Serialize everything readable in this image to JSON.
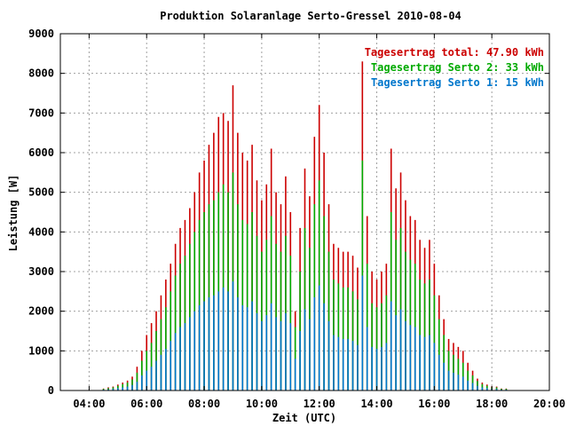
{
  "chart_data": {
    "type": "bar",
    "title": "Produktion Solaranlage Serto-Gressel 2010-08-04",
    "xlabel": "Zeit (UTC)",
    "ylabel": "Leistung [W]",
    "xlim_hours": [
      3.0,
      20.0
    ],
    "ylim": [
      0,
      9000
    ],
    "grid": true,
    "legend_placement": "top-right",
    "x_ticks": [
      "04:00",
      "06:00",
      "08:00",
      "10:00",
      "12:00",
      "14:00",
      "16:00",
      "18:00",
      "20:00"
    ],
    "x_tick_hours": [
      4,
      6,
      8,
      10,
      12,
      14,
      16,
      18,
      20
    ],
    "y_ticks": [
      "0",
      "1000",
      "2000",
      "3000",
      "4000",
      "5000",
      "6000",
      "7000",
      "8000",
      "9000"
    ],
    "y_tick_values": [
      0,
      1000,
      2000,
      3000,
      4000,
      5000,
      6000,
      7000,
      8000,
      9000
    ],
    "series": [
      {
        "name": "Tagesertrag total: 47.90 kWh",
        "color": "#cc0000",
        "times": [
          "04:30",
          "04:40",
          "04:50",
          "05:00",
          "05:10",
          "05:20",
          "05:30",
          "05:40",
          "05:50",
          "06:00",
          "06:10",
          "06:20",
          "06:30",
          "06:40",
          "06:50",
          "07:00",
          "07:10",
          "07:20",
          "07:30",
          "07:40",
          "07:50",
          "08:00",
          "08:10",
          "08:20",
          "08:30",
          "08:40",
          "08:50",
          "09:00",
          "09:10",
          "09:20",
          "09:30",
          "09:40",
          "09:50",
          "10:00",
          "10:10",
          "10:20",
          "10:30",
          "10:40",
          "10:50",
          "11:00",
          "11:10",
          "11:20",
          "11:30",
          "11:40",
          "11:50",
          "12:00",
          "12:10",
          "12:20",
          "12:30",
          "12:40",
          "12:50",
          "13:00",
          "13:10",
          "13:20",
          "13:30",
          "13:40",
          "13:50",
          "14:00",
          "14:10",
          "14:20",
          "14:30",
          "14:40",
          "14:50",
          "15:00",
          "15:10",
          "15:20",
          "15:30",
          "15:40",
          "15:50",
          "16:00",
          "16:10",
          "16:20",
          "16:30",
          "16:40",
          "16:50",
          "17:00",
          "17:10",
          "17:20",
          "17:30",
          "17:40",
          "17:50",
          "18:00",
          "18:10",
          "18:20",
          "18:30"
        ],
        "values": [
          50,
          80,
          100,
          150,
          200,
          250,
          350,
          600,
          1000,
          1400,
          1700,
          2000,
          2400,
          2800,
          3200,
          3700,
          4100,
          4300,
          4600,
          5000,
          5500,
          5800,
          6200,
          6500,
          6900,
          7000,
          6800,
          7700,
          6500,
          6000,
          5800,
          6200,
          5300,
          4800,
          5200,
          6100,
          5000,
          4700,
          5400,
          4500,
          2000,
          4100,
          5600,
          4900,
          6400,
          7200,
          6000,
          4700,
          3700,
          3600,
          3500,
          3500,
          3400,
          3100,
          8300,
          4400,
          3000,
          2800,
          3000,
          3200,
          6100,
          5100,
          5500,
          4800,
          4400,
          4300,
          3800,
          3600,
          3800,
          3200,
          2400,
          1800,
          1300,
          1200,
          1100,
          1000,
          700,
          500,
          300,
          200,
          150,
          100,
          100,
          50,
          50
        ]
      },
      {
        "name": "Tagesertrag Serto 2: 33 kWh",
        "color": "#00aa00",
        "times": [
          "04:30",
          "04:40",
          "04:50",
          "05:00",
          "05:10",
          "05:20",
          "05:30",
          "05:40",
          "05:50",
          "06:00",
          "06:10",
          "06:20",
          "06:30",
          "06:40",
          "06:50",
          "07:00",
          "07:10",
          "07:20",
          "07:30",
          "07:40",
          "07:50",
          "08:00",
          "08:10",
          "08:20",
          "08:30",
          "08:40",
          "08:50",
          "09:00",
          "09:10",
          "09:20",
          "09:30",
          "09:40",
          "09:50",
          "10:00",
          "10:10",
          "10:20",
          "10:30",
          "10:40",
          "10:50",
          "11:00",
          "11:10",
          "11:20",
          "11:30",
          "11:40",
          "11:50",
          "12:00",
          "12:10",
          "12:20",
          "12:30",
          "12:40",
          "12:50",
          "13:00",
          "13:10",
          "13:20",
          "13:30",
          "13:40",
          "13:50",
          "14:00",
          "14:10",
          "14:20",
          "14:30",
          "14:40",
          "14:50",
          "15:00",
          "15:10",
          "15:20",
          "15:30",
          "15:40",
          "15:50",
          "16:00",
          "16:10",
          "16:20",
          "16:30",
          "16:40",
          "16:50",
          "17:00",
          "17:10",
          "17:20",
          "17:30",
          "17:40",
          "17:50",
          "18:00",
          "18:10",
          "18:20",
          "18:30"
        ],
        "values": [
          40,
          60,
          80,
          120,
          160,
          200,
          280,
          450,
          750,
          1000,
          1200,
          1500,
          1800,
          2100,
          2500,
          2900,
          3200,
          3400,
          3700,
          4000,
          4300,
          4500,
          4700,
          4800,
          5000,
          5200,
          5000,
          5500,
          4700,
          4300,
          4200,
          4500,
          3900,
          3500,
          3800,
          4400,
          3700,
          3500,
          3900,
          3400,
          1600,
          3000,
          4100,
          3600,
          4700,
          5300,
          4400,
          3500,
          2800,
          2700,
          2600,
          2600,
          2500,
          2300,
          5800,
          3200,
          2200,
          2100,
          2200,
          2400,
          4500,
          3800,
          4100,
          3500,
          3300,
          3200,
          2800,
          2700,
          2800,
          2400,
          1800,
          1400,
          1000,
          900,
          800,
          700,
          500,
          380,
          240,
          160,
          120,
          80,
          80,
          40,
          40
        ]
      },
      {
        "name": "Tagesertrag Serto 1: 15 kWh",
        "color": "#0077cc",
        "times": [
          "04:30",
          "04:40",
          "04:50",
          "05:00",
          "05:10",
          "05:20",
          "05:30",
          "05:40",
          "05:50",
          "06:00",
          "06:10",
          "06:20",
          "06:30",
          "06:40",
          "06:50",
          "07:00",
          "07:10",
          "07:20",
          "07:30",
          "07:40",
          "07:50",
          "08:00",
          "08:10",
          "08:20",
          "08:30",
          "08:40",
          "08:50",
          "09:00",
          "09:10",
          "09:20",
          "09:30",
          "09:40",
          "09:50",
          "10:00",
          "10:10",
          "10:20",
          "10:30",
          "10:40",
          "10:50",
          "11:00",
          "11:10",
          "11:20",
          "11:30",
          "11:40",
          "11:50",
          "12:00",
          "12:10",
          "12:20",
          "12:30",
          "12:40",
          "12:50",
          "13:00",
          "13:10",
          "13:20",
          "13:30",
          "13:40",
          "13:50",
          "14:00",
          "14:10",
          "14:20",
          "14:30",
          "14:40",
          "14:50",
          "15:00",
          "15:10",
          "15:20",
          "15:30",
          "15:40",
          "15:50",
          "16:00",
          "16:10",
          "16:20",
          "16:30",
          "16:40",
          "16:50",
          "17:00",
          "17:10",
          "17:20",
          "17:30",
          "17:40",
          "17:50",
          "18:00",
          "18:10",
          "18:20",
          "18:30"
        ],
        "values": [
          20,
          30,
          40,
          60,
          80,
          100,
          140,
          220,
          380,
          500,
          600,
          750,
          900,
          1050,
          1250,
          1450,
          1600,
          1700,
          1850,
          2000,
          2150,
          2250,
          2350,
          2400,
          2500,
          2600,
          2500,
          2750,
          2350,
          2150,
          2100,
          2250,
          1950,
          1750,
          1900,
          2200,
          1850,
          1750,
          1950,
          1700,
          800,
          1500,
          2050,
          1800,
          2350,
          2650,
          2200,
          1750,
          1400,
          1350,
          1300,
          1300,
          1250,
          1150,
          2900,
          1600,
          1100,
          1050,
          1100,
          1200,
          2250,
          1900,
          2050,
          1750,
          1650,
          1600,
          1400,
          1350,
          1400,
          1200,
          900,
          700,
          500,
          450,
          400,
          350,
          250,
          190,
          120,
          80,
          60,
          40,
          40,
          20,
          20
        ]
      }
    ]
  }
}
